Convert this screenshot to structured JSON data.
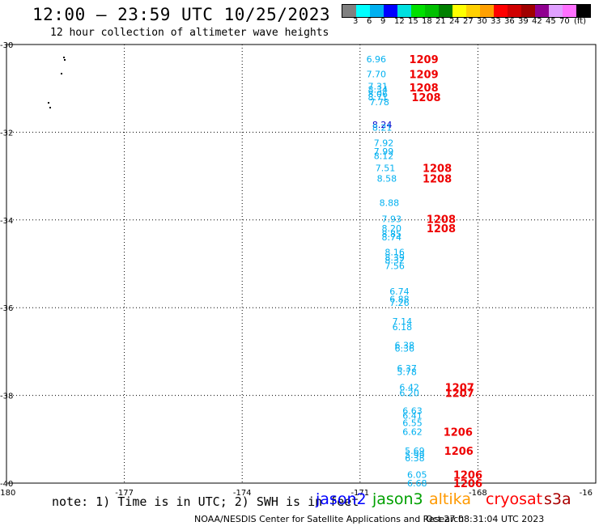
{
  "header": {
    "title": "12:00 — 23:59 UTC 10/25/2023",
    "subtitle": "12 hour collection of altimeter wave heights"
  },
  "legend": {
    "colors": [
      "#808080",
      "#00ffff",
      "#00b0f0",
      "#0000ff",
      "#00e0e0",
      "#00e000",
      "#00c000",
      "#008000",
      "#ffff00",
      "#ffd000",
      "#ffa000",
      "#ff0000",
      "#d00000",
      "#a00000",
      "#900090",
      "#e0a0ff",
      "#ff70ff",
      "#000000"
    ],
    "labels": [
      "3",
      "6",
      "9",
      "12",
      "15",
      "18",
      "21",
      "24",
      "27",
      "30",
      "33",
      "36",
      "39",
      "42",
      "45",
      "70",
      "(ft)"
    ]
  },
  "axes": {
    "lon_ticks": [
      "-180",
      "-177",
      "-174",
      "-171",
      "-168",
      "-16"
    ],
    "lat_ticks": [
      "-30",
      "-32",
      "-34",
      "-36",
      "-38",
      "-40"
    ]
  },
  "readings": [
    {
      "t": "6.96",
      "k": "w",
      "lon": -170.84,
      "lat": -30.33
    },
    {
      "t": "7.70",
      "k": "w",
      "lon": -170.84,
      "lat": -30.67
    },
    {
      "t": "7.31",
      "k": "w",
      "lon": -170.8,
      "lat": -30.95
    },
    {
      "t": "8.34",
      "k": "w",
      "lon": -170.8,
      "lat": -31.02
    },
    {
      "t": "8.06",
      "k": "w",
      "lon": -170.8,
      "lat": -31.13
    },
    {
      "t": "8.71",
      "k": "w",
      "lon": -170.8,
      "lat": -31.2
    },
    {
      "t": "7.78",
      "k": "w",
      "lon": -170.76,
      "lat": -31.31
    },
    {
      "t": "8.24",
      "k": "n",
      "lon": -170.69,
      "lat": -31.83
    },
    {
      "t": "8.21",
      "k": "w",
      "lon": -170.69,
      "lat": -31.89
    },
    {
      "t": "7.92",
      "k": "w",
      "lon": -170.65,
      "lat": -32.24
    },
    {
      "t": "7.99",
      "k": "w",
      "lon": -170.65,
      "lat": -32.44
    },
    {
      "t": "8.12",
      "k": "w",
      "lon": -170.65,
      "lat": -32.54
    },
    {
      "t": "7.51",
      "k": "w",
      "lon": -170.61,
      "lat": -32.81
    },
    {
      "t": "8.58",
      "k": "w",
      "lon": -170.57,
      "lat": -33.05
    },
    {
      "t": "8.88",
      "k": "w",
      "lon": -170.51,
      "lat": -33.61
    },
    {
      "t": "7.93",
      "k": "w",
      "lon": -170.45,
      "lat": -33.98
    },
    {
      "t": "8.20",
      "k": "w",
      "lon": -170.45,
      "lat": -34.19
    },
    {
      "t": "8.85",
      "k": "w",
      "lon": -170.45,
      "lat": -34.32
    },
    {
      "t": "8.74",
      "k": "w",
      "lon": -170.45,
      "lat": -34.39
    },
    {
      "t": "8.16",
      "k": "w",
      "lon": -170.37,
      "lat": -34.73
    },
    {
      "t": "8.39",
      "k": "w",
      "lon": -170.37,
      "lat": -34.85
    },
    {
      "t": "8.32",
      "k": "w",
      "lon": -170.37,
      "lat": -34.92
    },
    {
      "t": "7.56",
      "k": "w",
      "lon": -170.37,
      "lat": -35.05
    },
    {
      "t": "6.74",
      "k": "w",
      "lon": -170.25,
      "lat": -35.63
    },
    {
      "t": "6.88",
      "k": "w",
      "lon": -170.25,
      "lat": -35.8
    },
    {
      "t": "7.26",
      "k": "w",
      "lon": -170.25,
      "lat": -35.89
    },
    {
      "t": "7.14",
      "k": "w",
      "lon": -170.18,
      "lat": -36.31
    },
    {
      "t": "6.18",
      "k": "w",
      "lon": -170.18,
      "lat": -36.44
    },
    {
      "t": "6.38",
      "k": "w",
      "lon": -170.12,
      "lat": -36.85
    },
    {
      "t": "6.36",
      "k": "w",
      "lon": -170.12,
      "lat": -36.93
    },
    {
      "t": "6.37",
      "k": "w",
      "lon": -170.06,
      "lat": -37.38
    },
    {
      "t": "5.78",
      "k": "w",
      "lon": -170.06,
      "lat": -37.46
    },
    {
      "t": "6.42",
      "k": "w",
      "lon": -170.0,
      "lat": -37.81
    },
    {
      "t": "6.20",
      "k": "w",
      "lon": -170.0,
      "lat": -37.94
    },
    {
      "t": "6.63",
      "k": "w",
      "lon": -169.92,
      "lat": -38.35
    },
    {
      "t": "6.41",
      "k": "w",
      "lon": -169.92,
      "lat": -38.46
    },
    {
      "t": "6.55",
      "k": "w",
      "lon": -169.92,
      "lat": -38.63
    },
    {
      "t": "6.62",
      "k": "w",
      "lon": -169.92,
      "lat": -38.83
    },
    {
      "t": "5.69",
      "k": "w",
      "lon": -169.86,
      "lat": -39.26
    },
    {
      "t": "5.99",
      "k": "w",
      "lon": -169.86,
      "lat": -39.35
    },
    {
      "t": "6.38",
      "k": "w",
      "lon": -169.86,
      "lat": -39.43
    },
    {
      "t": "6.05",
      "k": "w",
      "lon": -169.8,
      "lat": -39.81
    },
    {
      "t": "6.68",
      "k": "w",
      "lon": -169.8,
      "lat": -40.0
    }
  ],
  "times": [
    {
      "t": "1209",
      "lon": -169.75,
      "lat": -30.33
    },
    {
      "t": "1209",
      "lon": -169.75,
      "lat": -30.67
    },
    {
      "t": "1208",
      "lon": -169.75,
      "lat": -30.98
    },
    {
      "t": "1208",
      "lon": -169.69,
      "lat": -31.2
    },
    {
      "t": "1208",
      "lon": -169.41,
      "lat": -32.81
    },
    {
      "t": "1208",
      "lon": -169.41,
      "lat": -33.05
    },
    {
      "t": "1208",
      "lon": -169.31,
      "lat": -33.98
    },
    {
      "t": "1208",
      "lon": -169.31,
      "lat": -34.19
    },
    {
      "t": "1207",
      "lon": -168.84,
      "lat": -37.81
    },
    {
      "t": "1207",
      "lon": -168.84,
      "lat": -37.94
    },
    {
      "t": "1206",
      "lon": -168.88,
      "lat": -38.83
    },
    {
      "t": "1206",
      "lon": -168.86,
      "lat": -39.26
    },
    {
      "t": "1206",
      "lon": -168.63,
      "lat": -39.81
    },
    {
      "t": "1206",
      "lon": -168.63,
      "lat": -40.0
    }
  ],
  "note": "note: 1) Time is in UTC; 2) SWH is in feet",
  "satellites": [
    {
      "label": "jason2",
      "color": "#0000ff"
    },
    {
      "label": "jason3",
      "color": "#00a000"
    },
    {
      "label": "altika",
      "color": "#ff9900"
    },
    {
      "label": "cryosat",
      "color": "#ff0000"
    },
    {
      "label": "s3a",
      "color": "#aa0000"
    }
  ],
  "footer": {
    "credit": "NOAA/NESDIS Center for Satellite Applications and Research",
    "date": "Oct 27 08:31:04 UTC 2023"
  }
}
